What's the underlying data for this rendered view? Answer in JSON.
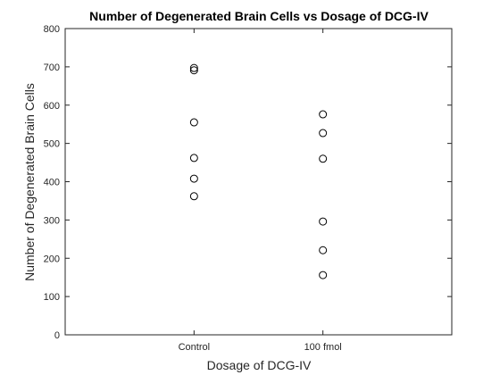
{
  "chart_data": {
    "type": "scatter",
    "title": "Number of Degenerated Brain Cells vs Dosage of DCG-IV",
    "xlabel": "Dosage of DCG-IV",
    "ylabel": "Number of Degenerated Brain Cells",
    "categories": [
      "Control",
      "100 fmol"
    ],
    "xlim": [
      0,
      3
    ],
    "ylim": [
      0,
      800
    ],
    "yticks": [
      "0",
      "100",
      "200",
      "300",
      "400",
      "500",
      "600",
      "700",
      "800"
    ],
    "grid": false,
    "legend": "none",
    "marker": "open-circle",
    "marker_color": "#000000",
    "series": [
      {
        "points": [
          {
            "x": "Control",
            "y": 697
          },
          {
            "x": "Control",
            "y": 691
          },
          {
            "x": "Control",
            "y": 555
          },
          {
            "x": "Control",
            "y": 462
          },
          {
            "x": "Control",
            "y": 408
          },
          {
            "x": "Control",
            "y": 362
          },
          {
            "x": "100 fmol",
            "y": 576
          },
          {
            "x": "100 fmol",
            "y": 527
          },
          {
            "x": "100 fmol",
            "y": 460
          },
          {
            "x": "100 fmol",
            "y": 296
          },
          {
            "x": "100 fmol",
            "y": 221
          },
          {
            "x": "100 fmol",
            "y": 156
          }
        ]
      }
    ]
  }
}
